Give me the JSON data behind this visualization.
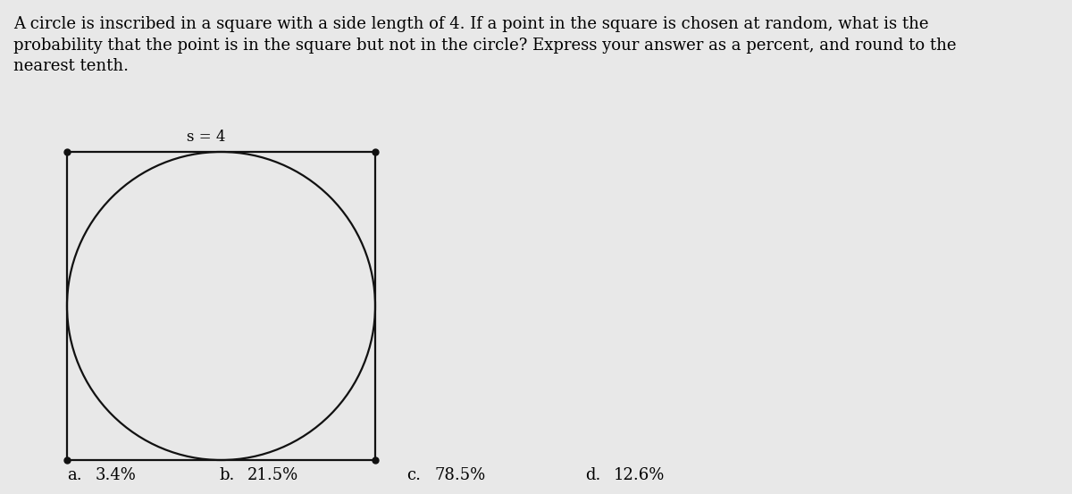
{
  "background_color": "#e8e8e8",
  "title_text": "A circle is inscribed in a square with a side length of 4. If a point in the square is chosen at random, what is the\nprobability that the point is in the square but not in the circle? Express your answer as a percent, and round to the\nnearest tenth.",
  "title_fontsize": 13.0,
  "label_s": "s = 4",
  "label_s_fontsize": 12,
  "answer_a_letter": "a.",
  "answer_a_val": "3.4%",
  "answer_b_letter": "b.",
  "answer_b_val": "21.5%",
  "answer_c_letter": "c.",
  "answer_c_val": "78.5%",
  "answer_d_letter": "d.",
  "answer_d_val": "12.6%",
  "answers_fontsize": 13,
  "line_color": "#111111",
  "line_width": 1.6,
  "dot_size": 5.0
}
